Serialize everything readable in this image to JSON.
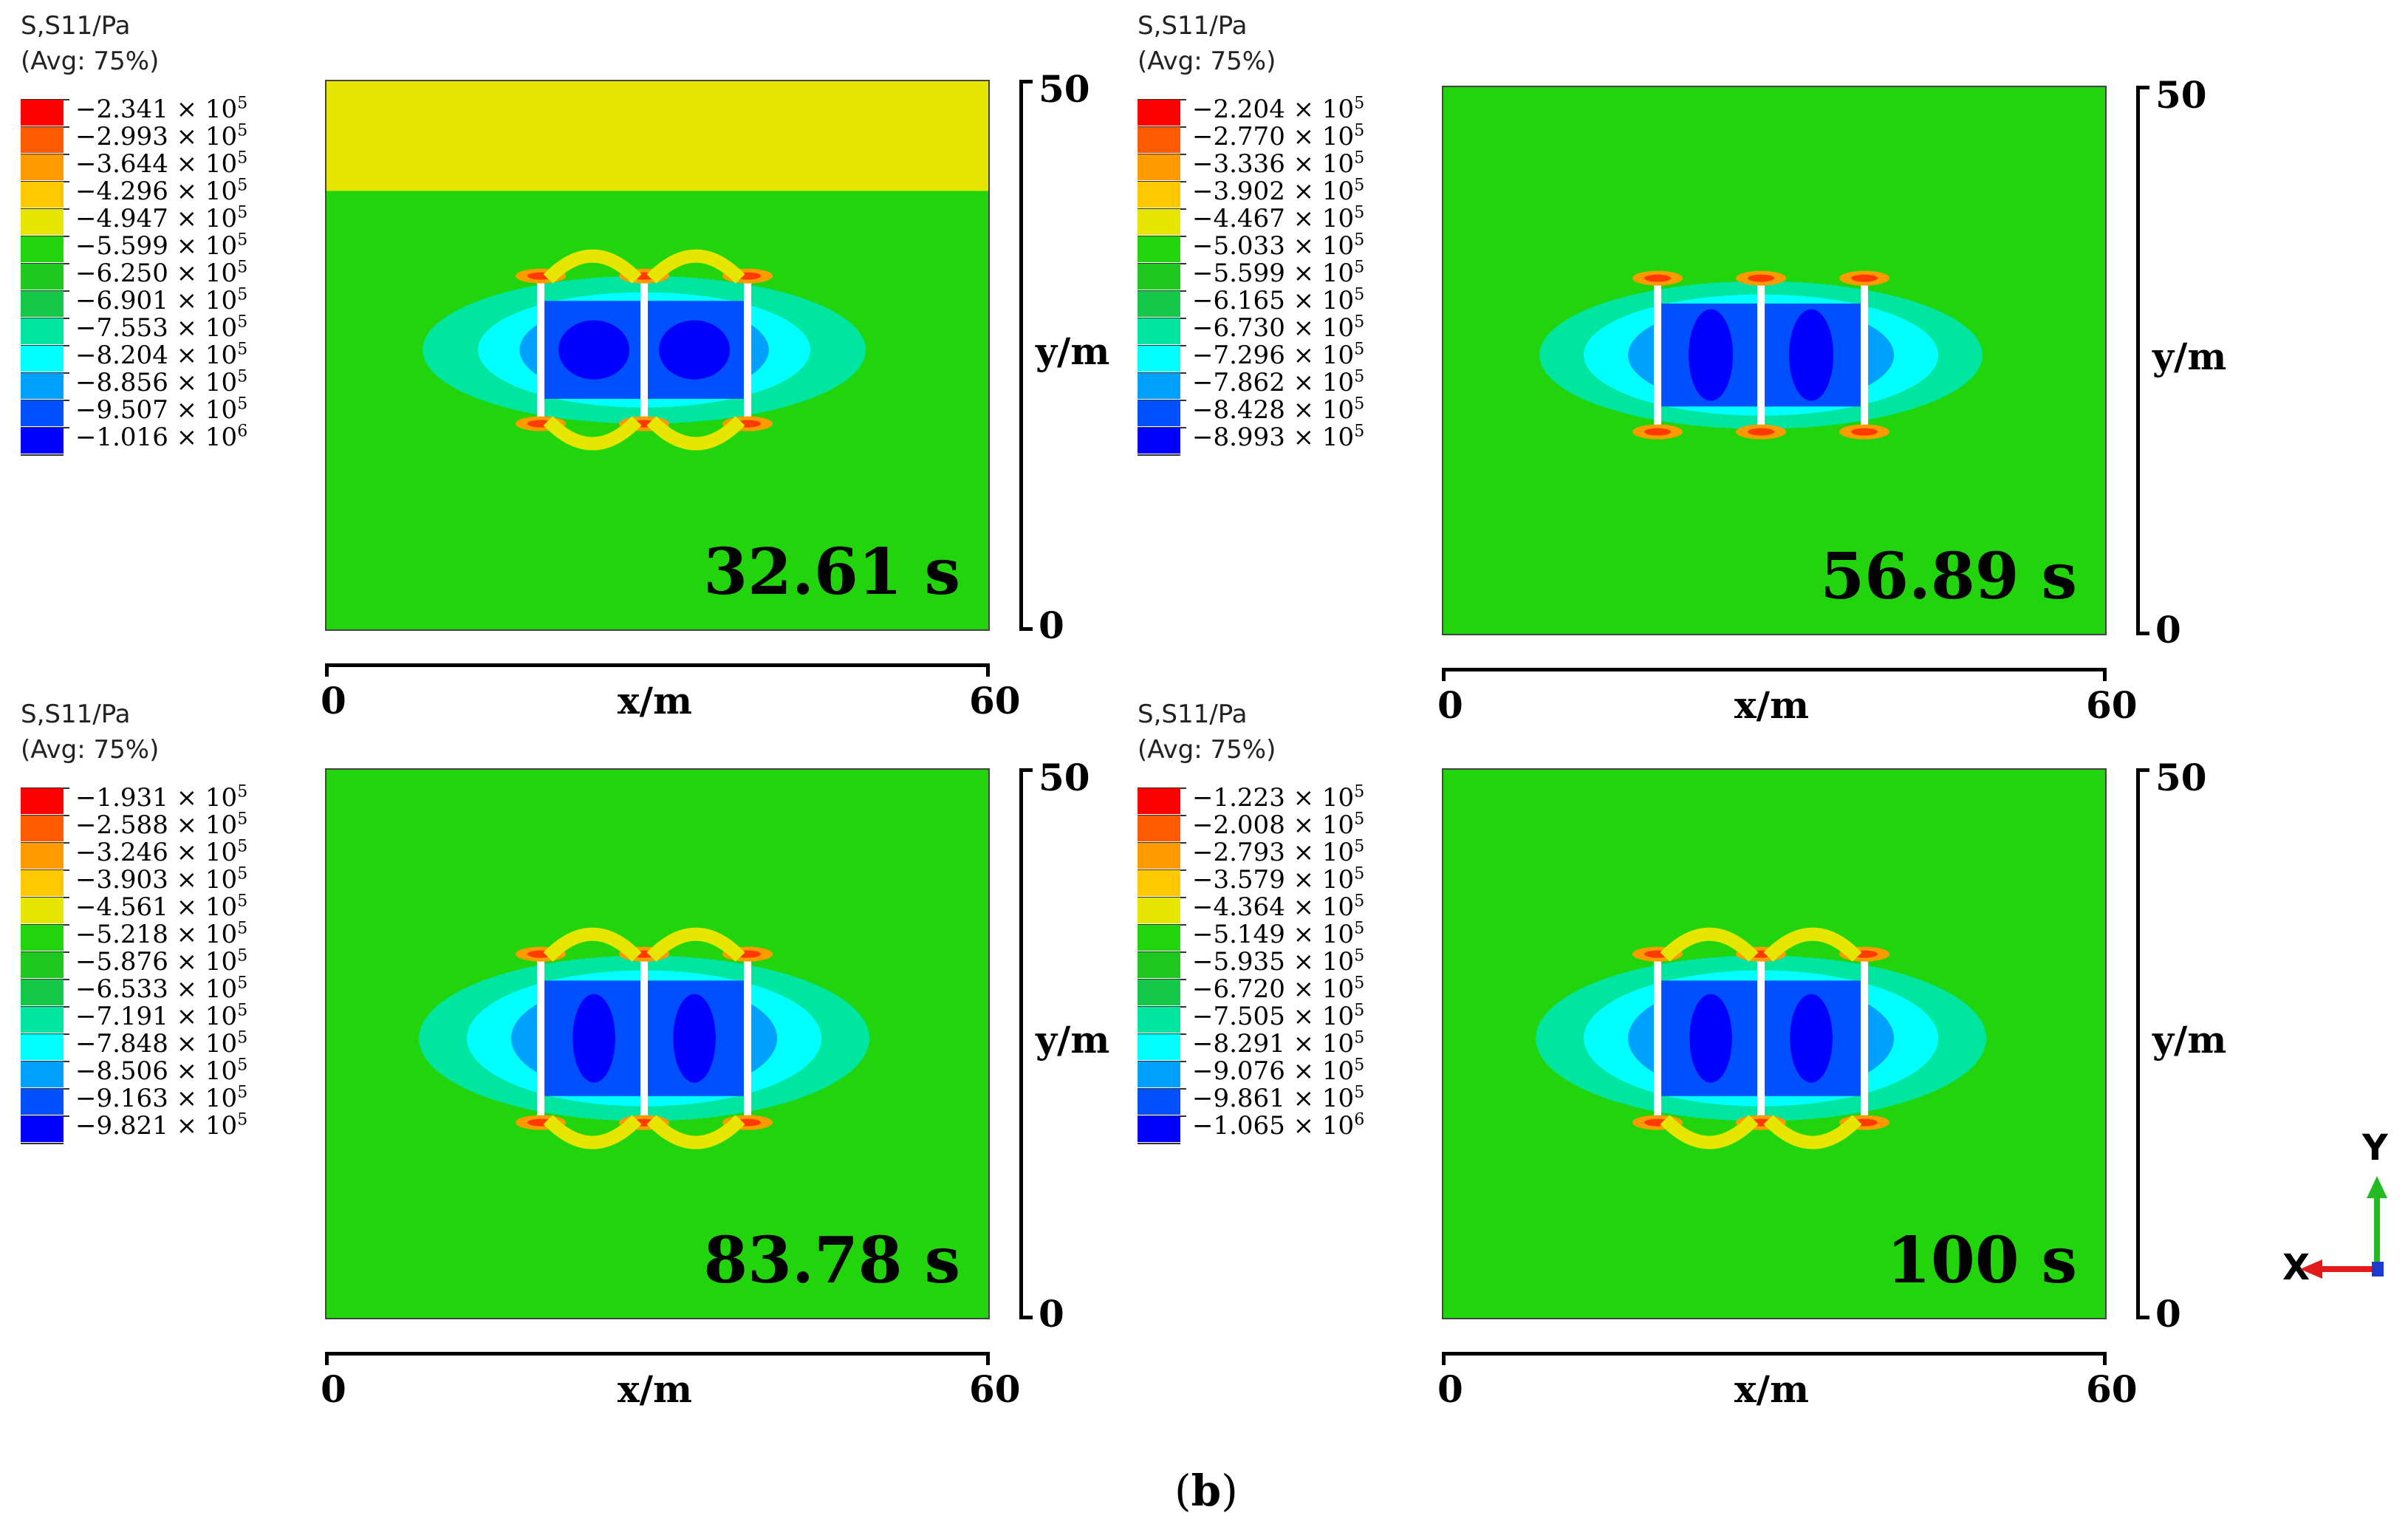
{
  "panels": [
    {
      "legend": {
        "title_line1": "S,S11/Pa",
        "title_line2": "(Avg: 75%)",
        "entries": [
          {
            "mantissa": "−2.341 × 10",
            "exp": "5"
          },
          {
            "mantissa": "−2.993 × 10",
            "exp": "5"
          },
          {
            "mantissa": "−3.644 × 10",
            "exp": "5"
          },
          {
            "mantissa": "−4.296 × 10",
            "exp": "5"
          },
          {
            "mantissa": "−4.947 × 10",
            "exp": "5"
          },
          {
            "mantissa": "−5.599 × 10",
            "exp": "5"
          },
          {
            "mantissa": "−6.250 × 10",
            "exp": "5"
          },
          {
            "mantissa": "−6.901 × 10",
            "exp": "5"
          },
          {
            "mantissa": "−7.553 × 10",
            "exp": "5"
          },
          {
            "mantissa": "−8.204 × 10",
            "exp": "5"
          },
          {
            "mantissa": "−8.856 × 10",
            "exp": "5"
          },
          {
            "mantissa": "−9.507 × 10",
            "exp": "5"
          },
          {
            "mantissa": "−1.016 × 10",
            "exp": "6"
          }
        ]
      },
      "time": "32.61 s",
      "y_axis": {
        "max": "50",
        "min": "0",
        "label": "y/m"
      },
      "x_axis": {
        "min": "0",
        "max": "60",
        "label": "x/m"
      }
    },
    {
      "legend": {
        "title_line1": "S,S11/Pa",
        "title_line2": "(Avg: 75%)",
        "entries": [
          {
            "mantissa": "−2.204 × 10",
            "exp": "5"
          },
          {
            "mantissa": "−2.770 × 10",
            "exp": "5"
          },
          {
            "mantissa": "−3.336 × 10",
            "exp": "5"
          },
          {
            "mantissa": "−3.902 × 10",
            "exp": "5"
          },
          {
            "mantissa": "−4.467 × 10",
            "exp": "5"
          },
          {
            "mantissa": "−5.033 × 10",
            "exp": "5"
          },
          {
            "mantissa": "−5.599 × 10",
            "exp": "5"
          },
          {
            "mantissa": "−6.165 × 10",
            "exp": "5"
          },
          {
            "mantissa": "−6.730 × 10",
            "exp": "5"
          },
          {
            "mantissa": "−7.296 × 10",
            "exp": "5"
          },
          {
            "mantissa": "−7.862 × 10",
            "exp": "5"
          },
          {
            "mantissa": "−8.428 × 10",
            "exp": "5"
          },
          {
            "mantissa": "−8.993 × 10",
            "exp": "5"
          }
        ]
      },
      "time": "56.89 s",
      "y_axis": {
        "max": "50",
        "min": "0",
        "label": "y/m"
      },
      "x_axis": {
        "min": "0",
        "max": "60",
        "label": "x/m"
      }
    },
    {
      "legend": {
        "title_line1": "S,S11/Pa",
        "title_line2": "(Avg: 75%)",
        "entries": [
          {
            "mantissa": "−1.931 × 10",
            "exp": "5"
          },
          {
            "mantissa": "−2.588 × 10",
            "exp": "5"
          },
          {
            "mantissa": "−3.246 × 10",
            "exp": "5"
          },
          {
            "mantissa": "−3.903 × 10",
            "exp": "5"
          },
          {
            "mantissa": "−4.561 × 10",
            "exp": "5"
          },
          {
            "mantissa": "−5.218 × 10",
            "exp": "5"
          },
          {
            "mantissa": "−5.876 × 10",
            "exp": "5"
          },
          {
            "mantissa": "−6.533 × 10",
            "exp": "5"
          },
          {
            "mantissa": "−7.191 × 10",
            "exp": "5"
          },
          {
            "mantissa": "−7.848 × 10",
            "exp": "5"
          },
          {
            "mantissa": "−8.506 × 10",
            "exp": "5"
          },
          {
            "mantissa": "−9.163 × 10",
            "exp": "5"
          },
          {
            "mantissa": "−9.821 × 10",
            "exp": "5"
          }
        ]
      },
      "time": "83.78 s",
      "y_axis": {
        "max": "50",
        "min": "0",
        "label": "y/m"
      },
      "x_axis": {
        "min": "0",
        "max": "60",
        "label": "x/m"
      }
    },
    {
      "legend": {
        "title_line1": "S,S11/Pa",
        "title_line2": "(Avg: 75%)",
        "entries": [
          {
            "mantissa": "−1.223 × 10",
            "exp": "5"
          },
          {
            "mantissa": "−2.008 × 10",
            "exp": "5"
          },
          {
            "mantissa": "−2.793 × 10",
            "exp": "5"
          },
          {
            "mantissa": "−3.579 × 10",
            "exp": "5"
          },
          {
            "mantissa": "−4.364 × 10",
            "exp": "5"
          },
          {
            "mantissa": "−5.149 × 10",
            "exp": "5"
          },
          {
            "mantissa": "−5.935 × 10",
            "exp": "5"
          },
          {
            "mantissa": "−6.720 × 10",
            "exp": "5"
          },
          {
            "mantissa": "−7.505 × 10",
            "exp": "5"
          },
          {
            "mantissa": "−8.291 × 10",
            "exp": "5"
          },
          {
            "mantissa": "−9.076 × 10",
            "exp": "5"
          },
          {
            "mantissa": "−9.861 × 10",
            "exp": "5"
          },
          {
            "mantissa": "−1.065 × 10",
            "exp": "6"
          }
        ]
      },
      "time": "100 s",
      "y_axis": {
        "max": "50",
        "min": "0",
        "label": "y/m"
      },
      "x_axis": {
        "min": "0",
        "max": "60",
        "label": "x/m"
      }
    }
  ],
  "legend_colors": [
    "#ff0000",
    "#ff5a00",
    "#ff9a00",
    "#ffc800",
    "#e6e600",
    "#22d40b",
    "#1ec81e",
    "#16c84a",
    "#00e6a0",
    "#00ffff",
    "#00a0ff",
    "#0050ff",
    "#0000ff"
  ],
  "triad": {
    "y_label": "Y",
    "x_label": "X",
    "x_color": "#e31a1a",
    "y_color": "#22bb22",
    "z_color": "#1a3ad0"
  },
  "caption": {
    "open": "(",
    "letter": "b",
    "close": ")"
  }
}
